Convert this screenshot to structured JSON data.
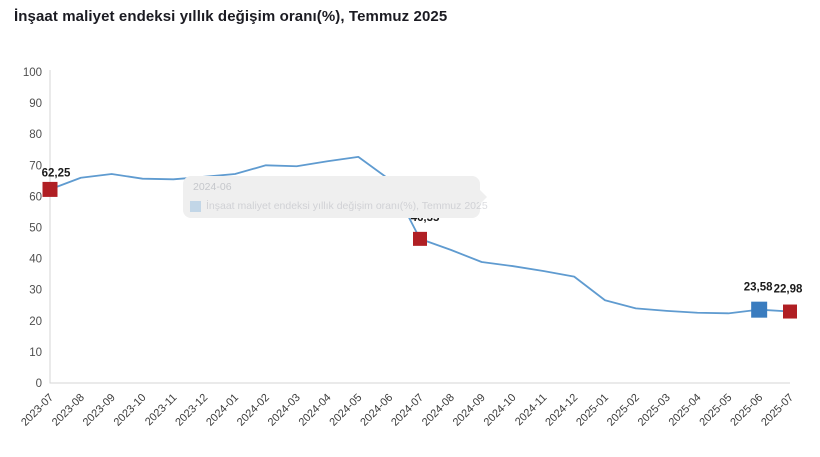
{
  "chart_data": {
    "type": "line",
    "title": "İnşaat maliyet endeksi yıllık değişim oranı(%), Temmuz 2025",
    "xlabel": "",
    "ylabel": "",
    "ylim": [
      0,
      100
    ],
    "yticks": [
      0,
      10,
      20,
      30,
      40,
      50,
      60,
      70,
      80,
      90,
      100
    ],
    "grid": false,
    "legend_position": "none",
    "line_color": "#5f9bd0",
    "axis_color": "#d6d6d6",
    "categories": [
      "2023-07",
      "2023-08",
      "2023-09",
      "2023-10",
      "2023-11",
      "2023-12",
      "2024-01",
      "2024-02",
      "2024-03",
      "2024-04",
      "2024-05",
      "2024-06",
      "2024-07",
      "2024-08",
      "2024-09",
      "2024-10",
      "2024-11",
      "2024-12",
      "2025-01",
      "2025-02",
      "2025-03",
      "2025-04",
      "2025-05",
      "2025-06",
      "2025-07"
    ],
    "series": [
      {
        "name": "İnşaat maliyet endeksi yıllık değişim oranı(%)",
        "values": [
          62.25,
          66.0,
          67.2,
          65.7,
          65.5,
          66.3,
          67.2,
          70.0,
          69.7,
          71.3,
          72.7,
          65.5,
          46.35,
          42.8,
          38.9,
          37.6,
          36.0,
          34.2,
          26.6,
          24.0,
          23.2,
          22.6,
          22.4,
          23.58,
          22.98
        ]
      }
    ],
    "markers": [
      {
        "category": "2023-07",
        "index": 0,
        "value": 62.25,
        "label": "62,25",
        "color": "#b01f24",
        "size": 15
      },
      {
        "category": "2024-07",
        "index": 12,
        "value": 46.35,
        "label": "46,35",
        "color": "#b01f24",
        "size": 14
      },
      {
        "category": "2025-06",
        "index": 23,
        "value": 23.58,
        "label": "23,58",
        "color": "#3a7cbf",
        "size": 16
      },
      {
        "category": "2025-07",
        "index": 24,
        "value": 22.98,
        "label": "22,98",
        "color": "#b01f24",
        "size": 14
      }
    ]
  },
  "tooltip": {
    "date_text": "2024-06",
    "series_text": "İnşaat maliyet endeksi yıllık değişim oranı(%), Temmuz 2025"
  }
}
